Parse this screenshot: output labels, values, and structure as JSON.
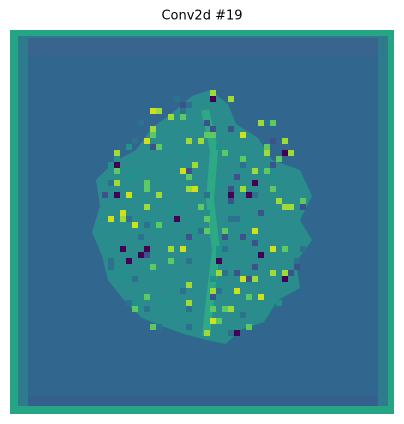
{
  "title": "Conv2d #19"
}
